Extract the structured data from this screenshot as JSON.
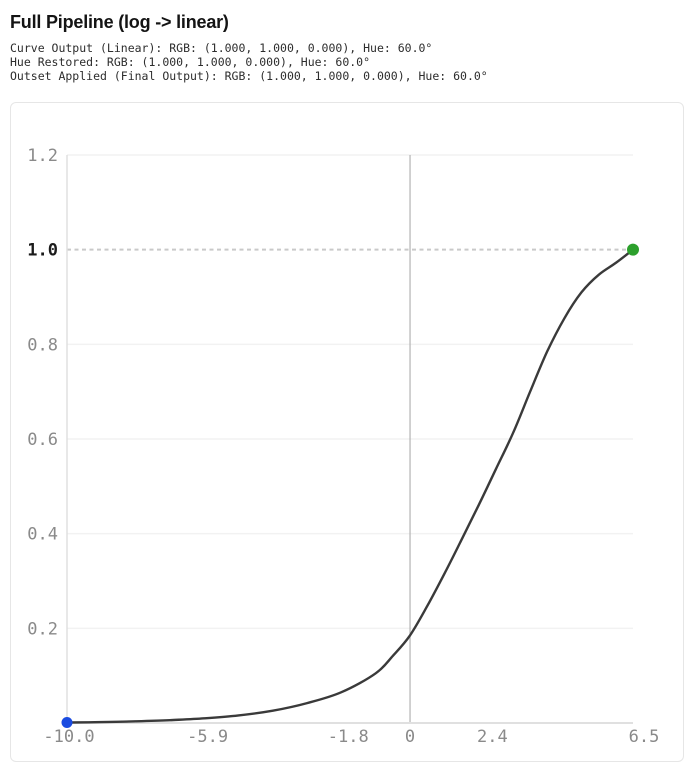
{
  "header": {
    "title": "Full Pipeline (log -> linear)",
    "info_lines": [
      "Curve Output (Linear): RGB: (1.000, 1.000, 0.000), Hue: 60.0°",
      "Hue Restored: RGB: (1.000, 1.000, 0.000), Hue: 60.0°",
      "Outset Applied (Final Output): RGB: (1.000, 1.000, 0.000), Hue: 60.0°"
    ]
  },
  "chart_data": {
    "type": "line",
    "title": "",
    "xlabel": "",
    "ylabel": "",
    "xlim": [
      -10,
      6.5
    ],
    "ylim": [
      0,
      1.2
    ],
    "grid": "horizontal",
    "legend": "none",
    "x_ticks": [
      {
        "value": -10,
        "label": "-10.0",
        "dx": 2
      },
      {
        "value": -5.9,
        "label": "-5.9",
        "dx": 0
      },
      {
        "value": -1.8,
        "label": "-1.8",
        "dx": 0
      },
      {
        "value": 0,
        "label": "0",
        "dx": 0
      },
      {
        "value": 2.4,
        "label": "2.4",
        "dx": 0
      },
      {
        "value": 6.5,
        "label": "6.5",
        "dx": 11
      }
    ],
    "y_ticks": [
      {
        "value": 1.2,
        "label": "1.2",
        "emphasis": false
      },
      {
        "value": 1.0,
        "label": "1.0",
        "emphasis": true
      },
      {
        "value": 0.8,
        "label": "0.8",
        "emphasis": false
      },
      {
        "value": 0.6,
        "label": "0.6",
        "emphasis": false
      },
      {
        "value": 0.4,
        "label": "0.4",
        "emphasis": false
      },
      {
        "value": 0.2,
        "label": "0.2",
        "emphasis": false
      }
    ],
    "reference_lines": {
      "dotted_horizontal_y": 1.0,
      "solid_vertical_x": 0
    },
    "series": [
      {
        "name": "log-to-linear-transfer-curve",
        "color": "#3a3a3a",
        "points": [
          [
            -10,
            0.001
          ],
          [
            -9,
            0.002
          ],
          [
            -8,
            0.0035
          ],
          [
            -7,
            0.006
          ],
          [
            -6,
            0.01
          ],
          [
            -5,
            0.016
          ],
          [
            -4,
            0.026
          ],
          [
            -3,
            0.042
          ],
          [
            -2,
            0.065
          ],
          [
            -1,
            0.105
          ],
          [
            -0.5,
            0.142
          ],
          [
            0,
            0.185
          ],
          [
            0.5,
            0.247
          ],
          [
            1,
            0.315
          ],
          [
            1.5,
            0.387
          ],
          [
            2,
            0.46
          ],
          [
            2.5,
            0.536
          ],
          [
            3,
            0.612
          ],
          [
            3.5,
            0.7
          ],
          [
            4,
            0.785
          ],
          [
            4.5,
            0.855
          ],
          [
            5,
            0.91
          ],
          [
            5.5,
            0.947
          ],
          [
            6,
            0.972
          ],
          [
            6.5,
            1.0
          ]
        ]
      }
    ],
    "markers": [
      {
        "name": "start-point",
        "x": -10,
        "y": 0.001,
        "color": "#1a4be0",
        "radius": 5.5
      },
      {
        "name": "end-point",
        "x": 6.5,
        "y": 1.0,
        "color": "#2ca02c",
        "radius": 6
      }
    ],
    "colors": {
      "curve": "#3a3a3a",
      "grid": "#f2f2f2",
      "axis": "#e0e0e0",
      "dotted_line": "#c9c9c9",
      "vertical_line": "#b3b3b3",
      "tick_label": "#8a8a8a",
      "tick_label_emphasis": "#1b1b1b",
      "card_border": "#e6e6e6",
      "start_marker": "#1a4be0",
      "end_marker": "#2ca02c"
    }
  }
}
